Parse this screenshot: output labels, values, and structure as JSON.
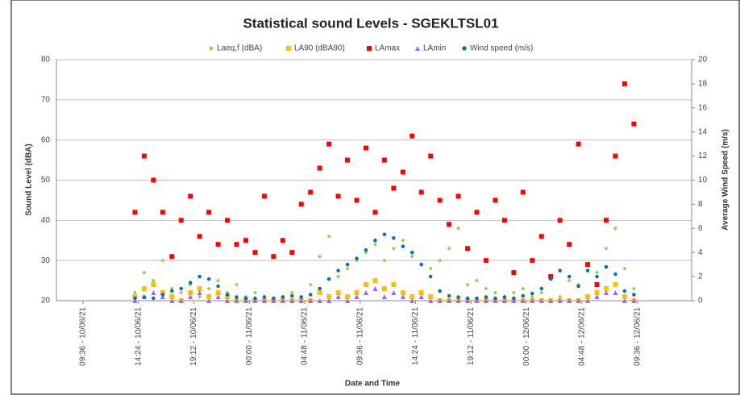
{
  "chart_data": {
    "type": "scatter",
    "title": "Statistical sound Levels - SGEKLTSL01",
    "xlabel": "Date and Time",
    "ylabel": "Sound Level (dBA)",
    "y2label": "Average Wind Speed (m/s)",
    "legend": "top",
    "grid": true,
    "xlim": [
      -2.3,
      52.7
    ],
    "xticks": [
      {
        "value": 0,
        "label": "09:36 - 10/06/21"
      },
      {
        "value": 4.8,
        "label": "14:24 - 10/06/21"
      },
      {
        "value": 9.6,
        "label": "19:12 - 10/06/21"
      },
      {
        "value": 14.4,
        "label": "00:00 - 11/06/21"
      },
      {
        "value": 19.2,
        "label": "04:48 - 11/06/21"
      },
      {
        "value": 24,
        "label": "09:36 - 11/06/21"
      },
      {
        "value": 28.8,
        "label": "14:24 - 11/06/21"
      },
      {
        "value": 33.6,
        "label": "19:12 - 11/06/21"
      },
      {
        "value": 38.4,
        "label": "00:00 - 12/06/21"
      },
      {
        "value": 43.2,
        "label": "04:48 - 12/06/21"
      },
      {
        "value": 48,
        "label": "09:36 - 12/06/21"
      }
    ],
    "ylim": [
      20,
      80
    ],
    "yticks": [
      20,
      30,
      40,
      50,
      60,
      70,
      80
    ],
    "y2lim": [
      0,
      20
    ],
    "y2ticks": [
      0,
      2,
      4,
      6,
      8,
      10,
      12,
      14,
      16,
      18,
      20
    ],
    "x": [
      4.5,
      5.3,
      6.1,
      6.9,
      7.7,
      8.5,
      9.3,
      10.1,
      10.9,
      11.7,
      12.5,
      13.3,
      14.1,
      14.9,
      15.7,
      16.5,
      17.3,
      18.1,
      18.9,
      19.7,
      20.5,
      21.3,
      22.1,
      22.9,
      23.7,
      24.5,
      25.3,
      26.1,
      26.9,
      27.7,
      28.5,
      29.3,
      30.1,
      30.9,
      31.7,
      32.5,
      33.3,
      34.1,
      34.9,
      35.7,
      36.5,
      37.3,
      38.1,
      38.9,
      39.7,
      40.5,
      41.3,
      42.1,
      42.9,
      43.7,
      44.5,
      45.3,
      46.1,
      46.9,
      47.7
    ],
    "series": [
      {
        "name": "Laeq,f (dBA)",
        "color": "#92d050",
        "marker": "diamond",
        "values": [
          22,
          27,
          25,
          30,
          23,
          22,
          24,
          21,
          23,
          25,
          22,
          24,
          21,
          22,
          21,
          20,
          21,
          22,
          21,
          24,
          31,
          36,
          26,
          28,
          30,
          32,
          34,
          30,
          33,
          35,
          31,
          29,
          28,
          30,
          33,
          38,
          24,
          25,
          23,
          22,
          21,
          22,
          23,
          21,
          22,
          26,
          21,
          25,
          24,
          21,
          27,
          33,
          38,
          28,
          23
        ]
      },
      {
        "name": "LA90 (dBA90)",
        "color": "#ffc000",
        "marker": "square",
        "values": [
          21,
          23,
          24,
          22,
          21,
          20,
          22,
          23,
          21,
          22,
          21,
          20,
          20,
          20,
          20,
          20,
          20,
          20,
          20,
          20,
          22,
          21,
          22,
          21,
          22,
          24,
          25,
          23,
          24,
          22,
          21,
          22,
          21,
          20,
          20,
          20,
          20,
          20,
          20,
          20,
          20,
          20,
          20,
          20,
          20,
          20,
          20,
          20,
          20,
          21,
          22,
          23,
          24,
          21,
          20
        ]
      },
      {
        "name": "LAmax",
        "color": "#ff0000",
        "marker": "square",
        "values": [
          42,
          56,
          50,
          42,
          31,
          40,
          46,
          36,
          42,
          34,
          40,
          34,
          35,
          32,
          46,
          31,
          35,
          32,
          44,
          47,
          53,
          59,
          46,
          55,
          45,
          58,
          42,
          55,
          48,
          52,
          61,
          47,
          56,
          45,
          39,
          46,
          33,
          42,
          30,
          45,
          40,
          27,
          47,
          30,
          36,
          26,
          40,
          34,
          59,
          29,
          24,
          40,
          56,
          74,
          64
        ]
      },
      {
        "name": "LAmin",
        "color": "#9966ff",
        "marker": "triangle",
        "values": [
          20,
          21,
          22,
          21,
          20,
          20,
          21,
          22,
          20,
          21,
          20,
          20,
          20,
          20,
          20,
          20,
          20,
          20,
          20,
          20,
          20,
          20,
          21,
          20,
          21,
          22,
          23,
          21,
          22,
          21,
          20,
          21,
          20,
          20,
          20,
          20,
          20,
          20,
          20,
          20,
          20,
          20,
          20,
          20,
          20,
          20,
          20,
          20,
          20,
          20,
          21,
          22,
          22,
          20,
          20
        ]
      },
      {
        "name": "Wind speed (m/s)",
        "color": "#0070c0",
        "marker": "circle",
        "axis": "y2",
        "values": [
          0.2,
          0.3,
          0.2,
          0.5,
          0.8,
          1.0,
          1.5,
          2.0,
          1.8,
          1.2,
          0.5,
          0.3,
          0.2,
          0.2,
          0.3,
          0.2,
          0.3,
          0.4,
          0.3,
          0.5,
          1.0,
          1.8,
          2.5,
          3.0,
          3.5,
          4.2,
          5.0,
          5.5,
          5.2,
          4.5,
          4.0,
          3.0,
          2.0,
          0.8,
          0.4,
          0.3,
          0.2,
          0.2,
          0.3,
          0.2,
          0.3,
          0.2,
          0.4,
          0.6,
          1.0,
          1.8,
          2.5,
          2.0,
          1.2,
          2.5,
          2.0,
          2.8,
          2.2,
          0.8,
          0.5
        ]
      }
    ]
  }
}
